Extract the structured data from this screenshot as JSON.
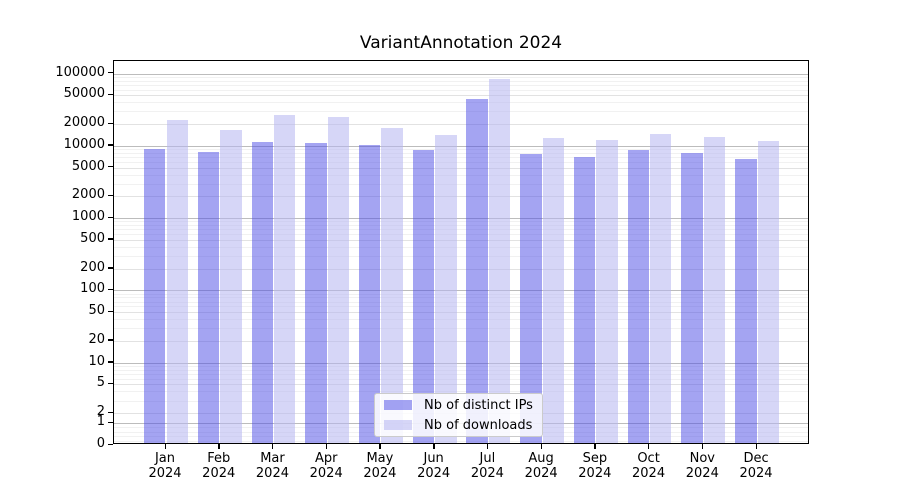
{
  "title": "VariantAnnotation 2024",
  "chart_data": {
    "type": "bar",
    "title": "VariantAnnotation 2024",
    "categories": [
      "Jan 2024",
      "Feb 2024",
      "Mar 2024",
      "Apr 2024",
      "May 2024",
      "Jun 2024",
      "Jul 2024",
      "Aug 2024",
      "Sep 2024",
      "Oct 2024",
      "Nov 2024",
      "Dec 2024"
    ],
    "series": [
      {
        "name": "Nb of distinct IPs",
        "color": "rgba(73,73,229,0.5)",
        "values": [
          9000,
          8200,
          11300,
          10900,
          10400,
          8700,
          44000,
          7600,
          7000,
          8800,
          8000,
          6600
        ]
      },
      {
        "name": "Nb of downloads",
        "color": "rgba(180,180,240,0.55)",
        "values": [
          22600,
          16300,
          27000,
          25200,
          17400,
          14000,
          84000,
          12800,
          12000,
          14600,
          13200,
          11600
        ]
      }
    ],
    "xlabel": "",
    "ylabel": "",
    "yscale": "symlog",
    "yticks": [
      0,
      1,
      2,
      5,
      10,
      20,
      50,
      100,
      200,
      500,
      1000,
      2000,
      5000,
      10000,
      20000,
      50000,
      100000
    ],
    "ylim": [
      0,
      100000
    ],
    "grid": true,
    "legend_position": "lower center, inside plot"
  }
}
